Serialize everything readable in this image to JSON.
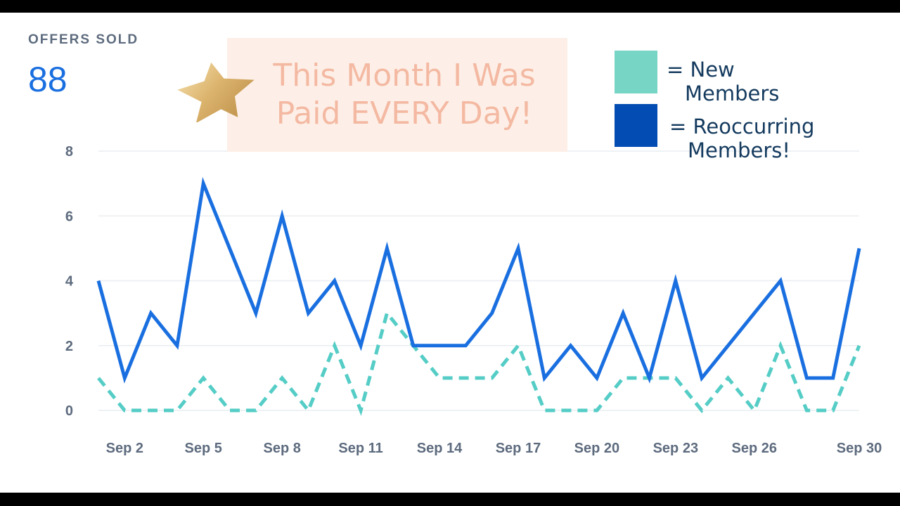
{
  "metric": {
    "label": "OFFERS SOLD",
    "value": "88"
  },
  "banner": {
    "line1": "This Month I Was",
    "line2": "Paid EVERY Day!"
  },
  "legend": [
    {
      "prefix": "= New",
      "line2": "Members",
      "color": "#76d5c4"
    },
    {
      "prefix": "= Reoccurring",
      "line2": "Members!",
      "color": "#034cb3"
    }
  ],
  "colors": {
    "reoccurring_line": "#1a6fe0",
    "new_line": "#55cdc6",
    "grid": "#e9edf2",
    "axis_text": "#5d6b7e"
  },
  "icons": {
    "decoration": "gold-star-icon"
  },
  "chart_data": {
    "type": "line",
    "x": [
      "Sep 1",
      "Sep 2",
      "Sep 3",
      "Sep 4",
      "Sep 5",
      "Sep 6",
      "Sep 7",
      "Sep 8",
      "Sep 9",
      "Sep 10",
      "Sep 11",
      "Sep 12",
      "Sep 13",
      "Sep 14",
      "Sep 15",
      "Sep 16",
      "Sep 17",
      "Sep 18",
      "Sep 19",
      "Sep 20",
      "Sep 21",
      "Sep 22",
      "Sep 23",
      "Sep 24",
      "Sep 25",
      "Sep 26",
      "Sep 27",
      "Sep 28",
      "Sep 29",
      "Sep 30"
    ],
    "x_tick_labels": [
      "Sep 2",
      "Sep 5",
      "Sep 8",
      "Sep 11",
      "Sep 14",
      "Sep 17",
      "Sep 20",
      "Sep 23",
      "Sep 26",
      "Sep 30"
    ],
    "y_ticks": [
      0,
      2,
      4,
      6,
      8
    ],
    "ylim": [
      0,
      8
    ],
    "grid": true,
    "series": [
      {
        "name": "Reoccurring Members!",
        "style": "solid",
        "values": [
          4,
          1,
          3,
          2,
          7,
          5,
          3,
          6,
          3,
          4,
          2,
          5,
          2,
          2,
          2,
          3,
          5,
          1,
          2,
          1,
          3,
          1,
          4,
          1,
          2,
          3,
          4,
          1,
          1,
          5
        ]
      },
      {
        "name": "New Members",
        "style": "dashed",
        "values": [
          1,
          0,
          0,
          0,
          1,
          0,
          0,
          1,
          0,
          2,
          0,
          3,
          2,
          1,
          1,
          1,
          2,
          0,
          0,
          0,
          1,
          1,
          1,
          0,
          1,
          0,
          2,
          0,
          0,
          2
        ]
      }
    ]
  }
}
